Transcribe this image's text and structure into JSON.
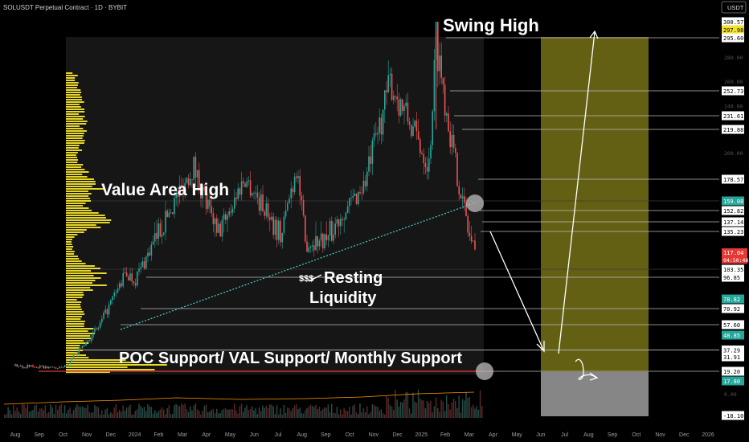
{
  "header": {
    "symbol_line": "SOLUSDT Perpetual Contract · 1D · BYBIT",
    "currency": "USDT"
  },
  "annotations": {
    "swing_high": "Swing High",
    "value_area_high": "Value Area High",
    "resting": "Resting",
    "liquidity": "Liquidity",
    "dollars": "$$$",
    "poc_support": "POC Support/ VAL Support/ Monthly Support"
  },
  "current_price": {
    "value": "117.04",
    "countdown": "04:50:48"
  },
  "colors": {
    "background": "#000000",
    "profile": "#f2e22a",
    "up": "#26a69a",
    "down": "#ef5350",
    "target_zone": "#6e6a16",
    "stop_zone": "#9e9e9e",
    "current_price": "#e53935",
    "green_label": "#26a69a"
  },
  "chart_data": {
    "type": "candlestick",
    "title": "SOLUSDT Perpetual Contract · 1D · BYBIT",
    "x_ticks": [
      "Aug",
      "Sep",
      "Oct",
      "Nov",
      "Dec",
      "2024",
      "Feb",
      "Mar",
      "Apr",
      "May",
      "Jun",
      "Jul",
      "Aug",
      "Sep",
      "Oct",
      "Nov",
      "Dec",
      "2025",
      "Feb",
      "Mar",
      "Apr",
      "May",
      "Jun",
      "Jul",
      "Aug",
      "Sep",
      "Oct",
      "Nov",
      "Dec",
      "2026"
    ],
    "y_axis_ticks": [
      "280.00",
      "260.00",
      "240.00",
      "220.00",
      "200.00",
      "0.00"
    ],
    "price_labels": [
      {
        "value": "300.57",
        "style": "white"
      },
      {
        "value": "297.98",
        "style": "yellow"
      },
      {
        "value": "295.60",
        "style": "white"
      },
      {
        "value": "252.73",
        "style": "white"
      },
      {
        "value": "231.61",
        "style": "white"
      },
      {
        "value": "219.88",
        "style": "white"
      },
      {
        "value": "178.57",
        "style": "white"
      },
      {
        "value": "159.08",
        "style": "green"
      },
      {
        "value": "152.82",
        "style": "white"
      },
      {
        "value": "137.14",
        "style": "white"
      },
      {
        "value": "135.23",
        "style": "white"
      },
      {
        "value": "103.35",
        "style": "white"
      },
      {
        "value": "96.85",
        "style": "white"
      },
      {
        "value": "78.82",
        "style": "green"
      },
      {
        "value": "70.92",
        "style": "white"
      },
      {
        "value": "57.60",
        "style": "white"
      },
      {
        "value": "48.85",
        "style": "green"
      },
      {
        "value": "37.29",
        "style": "white"
      },
      {
        "value": "31.91",
        "style": "white"
      },
      {
        "value": "19.20",
        "style": "white"
      },
      {
        "value": "17.80",
        "style": "green"
      },
      {
        "value": "-18.10",
        "style": "white"
      }
    ],
    "price_path": [
      [
        "2023-08",
        24
      ],
      [
        "2023-10",
        22
      ],
      [
        "2023-11-15",
        55
      ],
      [
        "2023-12-20",
        100
      ],
      [
        "2024-01",
        95
      ],
      [
        "2024-03-15",
        190
      ],
      [
        "2024-04-15",
        130
      ],
      [
        "2024-05-20",
        180
      ],
      [
        "2024-07-05",
        130
      ],
      [
        "2024-07-25",
        190
      ],
      [
        "2024-08-05",
        125
      ],
      [
        "2024-09-05",
        130
      ],
      [
        "2024-10-20",
        175
      ],
      [
        "2024-11-22",
        260
      ],
      [
        "2025-01-10",
        190
      ],
      [
        "2025-01-19",
        295
      ],
      [
        "2025-02-10",
        200
      ],
      [
        "2025-03-01",
        135
      ],
      [
        "2025-03-10",
        117
      ]
    ],
    "projection": {
      "from": 117,
      "to": 20,
      "then_to": 300
    },
    "grid": false,
    "legend": "none"
  }
}
